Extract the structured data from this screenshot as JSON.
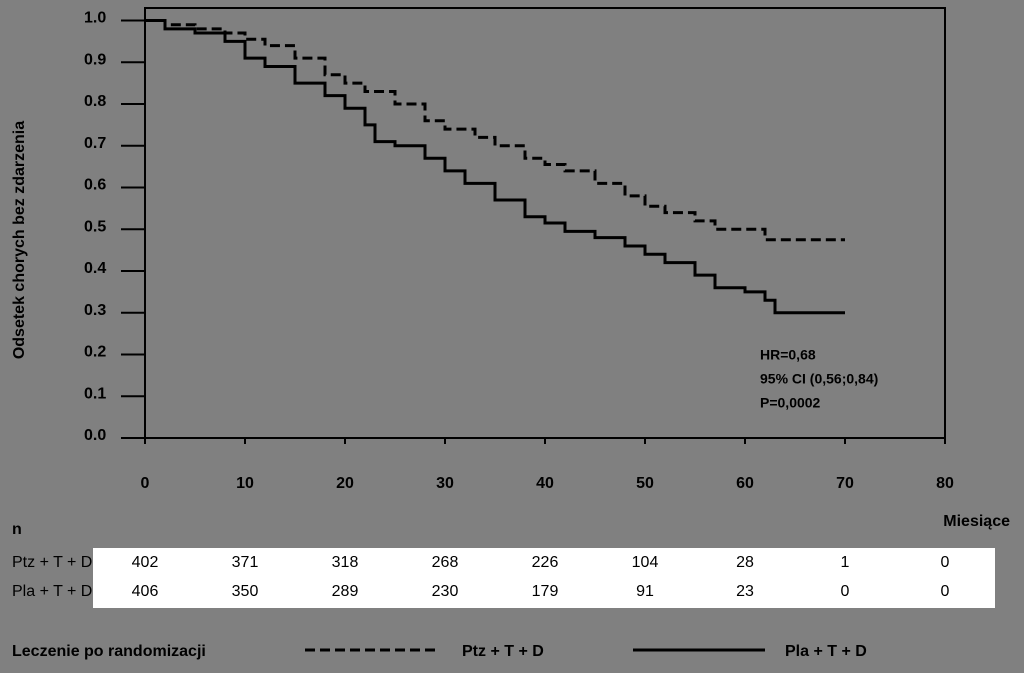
{
  "chart_data": {
    "type": "step",
    "y_label": "Odsetek chorych bez zdarzenia",
    "x_label": "Miesiące",
    "xlim": [
      0,
      80
    ],
    "xticks": [
      0,
      10,
      20,
      30,
      40,
      50,
      60,
      70,
      80
    ],
    "ylim": [
      0,
      1.03
    ],
    "yticks": [
      {
        "value": 0,
        "label": "0.0"
      },
      0.1,
      0.2,
      0.3,
      0.4,
      0.5,
      0.6,
      0.7,
      0.8,
      0.9,
      {
        "value": 1,
        "label": "1.0"
      }
    ],
    "annotations": [
      "HR=0,68",
      "95% CI (0,56;0,84)",
      "P=0,0002"
    ],
    "legend_title": "Leczenie po randomizacji",
    "series": [
      {
        "name": "Ptz + T + D",
        "color": "#000000",
        "dash": true,
        "x": [
          0,
          2,
          5,
          8,
          10,
          12,
          15,
          18,
          20,
          22,
          25,
          28,
          30,
          33,
          35,
          38,
          40,
          42,
          45,
          48,
          50,
          52,
          55,
          57,
          62,
          70
        ],
        "values": [
          1.0,
          0.99,
          0.98,
          0.97,
          0.955,
          0.94,
          0.91,
          0.87,
          0.85,
          0.83,
          0.8,
          0.76,
          0.74,
          0.72,
          0.7,
          0.67,
          0.655,
          0.64,
          0.61,
          0.58,
          0.555,
          0.54,
          0.52,
          0.5,
          0.475,
          0.475
        ]
      },
      {
        "name": "Pla + T + D",
        "color": "#000000",
        "dash": false,
        "x": [
          0,
          2,
          5,
          8,
          10,
          12,
          15,
          18,
          20,
          22,
          23,
          25,
          28,
          30,
          32,
          35,
          38,
          40,
          42,
          45,
          48,
          50,
          52,
          55,
          57,
          60,
          62,
          63,
          70
        ],
        "values": [
          1.0,
          0.98,
          0.97,
          0.95,
          0.91,
          0.89,
          0.85,
          0.82,
          0.79,
          0.75,
          0.71,
          0.7,
          0.67,
          0.64,
          0.61,
          0.57,
          0.53,
          0.515,
          0.495,
          0.48,
          0.46,
          0.44,
          0.42,
          0.39,
          0.36,
          0.35,
          0.33,
          0.3,
          0.3
        ]
      }
    ],
    "risk_table": {
      "label": "n",
      "rows": [
        {
          "name": "Ptz + T + D",
          "values": [
            402,
            371,
            318,
            268,
            226,
            104,
            28,
            1,
            0
          ]
        },
        {
          "name": "Pla + T + D",
          "values": [
            406,
            350,
            289,
            230,
            179,
            91,
            23,
            0,
            0
          ]
        }
      ]
    }
  }
}
